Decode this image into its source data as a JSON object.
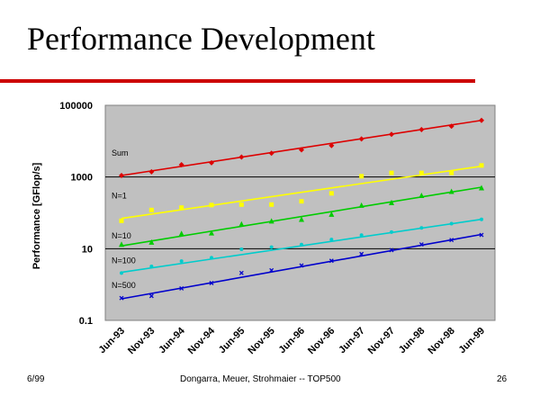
{
  "slide": {
    "title": "Performance Development",
    "footer_left": "6/99",
    "footer_center": "Dongarra, Meuer, Strohmaier -- TOP500",
    "footer_right": "26",
    "accent_color": "#cc0000"
  },
  "chart_data": {
    "type": "scatter",
    "ylabel": "Performance [GFlop/s]",
    "yscale": "log",
    "ylim": [
      0.1,
      100000
    ],
    "yticks": [
      0.1,
      10,
      1000,
      100000
    ],
    "ytick_labels": [
      "0.1",
      "10",
      "1000",
      "100000"
    ],
    "categories": [
      "Jun-93",
      "Nov-93",
      "Jun-94",
      "Nov-94",
      "Jun-95",
      "Nov-95",
      "Jun-96",
      "Nov-96",
      "Jun-97",
      "Nov-97",
      "Jun-98",
      "Nov-98",
      "Jun-99"
    ],
    "plot_background": "#c0c0c0",
    "grid": "horizontal major",
    "series": [
      {
        "name": "Sum",
        "color": "#dd0000",
        "marker": "diamond",
        "values": [
          1100,
          1400,
          2200,
          2500,
          3600,
          4600,
          5700,
          7500,
          11500,
          15500,
          21000,
          26000,
          38000
        ],
        "trend": [
          1100,
          38000
        ]
      },
      {
        "name": "N=1",
        "color": "#ffff00",
        "marker": "square",
        "values": [
          60,
          120,
          140,
          165,
          170,
          170,
          210,
          350,
          1050,
          1300,
          1300,
          1300,
          2100
        ],
        "trend": [
          70,
          2000
        ]
      },
      {
        "name": "N=10",
        "color": "#00cc00",
        "marker": "triangle",
        "values": [
          13,
          15,
          26,
          27,
          48,
          58,
          65,
          90,
          160,
          190,
          300,
          390,
          490
        ],
        "trend": [
          12,
          520
        ]
      },
      {
        "name": "N=100",
        "color": "#00cccc",
        "marker": "circle",
        "values": [
          2.1,
          3.2,
          4.5,
          5.6,
          9.6,
          11,
          13,
          18,
          24,
          29,
          38,
          50,
          66
        ],
        "trend": [
          2.2,
          66
        ]
      },
      {
        "name": "N=500",
        "color": "#0000cc",
        "marker": "x",
        "values": [
          0.42,
          0.48,
          0.78,
          1.1,
          2.1,
          2.5,
          3.4,
          4.6,
          7.1,
          9.1,
          13.2,
          17.5,
          24.2
        ],
        "trend": [
          0.4,
          25
        ]
      }
    ]
  }
}
